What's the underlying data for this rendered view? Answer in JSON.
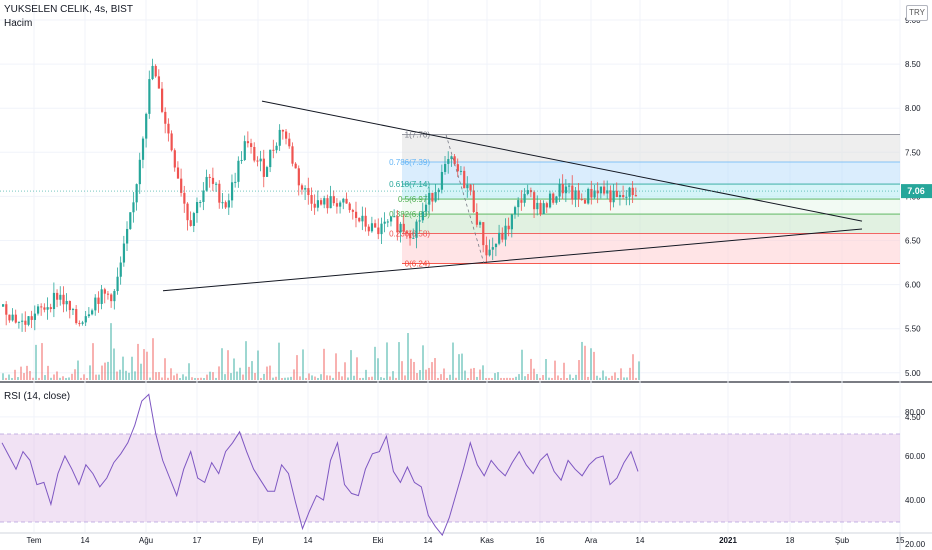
{
  "header": {
    "symbol_line": "YUKSELEN CELIK, 4s, BIST",
    "volume_label": "Hacim",
    "currency": "TRY"
  },
  "rsi_pane": {
    "label": "RSI (14, close)"
  },
  "colors": {
    "up": "#26a69a",
    "down": "#ef5350",
    "rsi_line": "#7e57c2",
    "rsi_band": "#e1bee7",
    "fib_0": "#ef9a9a",
    "fib_236": "#ffcdd2",
    "fib_382": "#c8e6c9",
    "fib_5": "#e8f5e9",
    "fib_618": "#b2ebf2",
    "fib_786": "#bbdefb",
    "fib_1": "#e0e0e0"
  },
  "chart_data": [
    {
      "type": "candlestick",
      "title": "YUKSELEN CELIK, 4s, BIST",
      "x_ticks": [
        "Tem",
        "14",
        "Ağu",
        "17",
        "Eyl",
        "14",
        "Eki",
        "14",
        "Kas",
        "16",
        "Ara",
        "14",
        "2021",
        "18",
        "Şub",
        "15"
      ],
      "y_ticks": [
        "4.50",
        "5.00",
        "5.50",
        "6.00",
        "6.50",
        "7.00",
        "7.50",
        "8.00",
        "8.50",
        "9.00"
      ],
      "ylim": [
        4.5,
        9.0
      ],
      "last_price": "7.06",
      "price_path": [
        {
          "x": "Tem",
          "y": 5.75
        },
        {
          "x": "Tem",
          "y": 5.55
        },
        {
          "x": "Tem",
          "y": 5.7
        },
        {
          "x": "Tem",
          "y": 5.9
        },
        {
          "x": "14",
          "y": 5.55
        },
        {
          "x": "14",
          "y": 5.85
        },
        {
          "x": "14",
          "y": 5.9
        },
        {
          "x": "14",
          "y": 6.9
        },
        {
          "x": "Ağu",
          "y": 8.5
        },
        {
          "x": "Ağu",
          "y": 7.6
        },
        {
          "x": "Ağu",
          "y": 6.7
        },
        {
          "x": "Ağu",
          "y": 7.2
        },
        {
          "x": "17",
          "y": 6.9
        },
        {
          "x": "17",
          "y": 7.6
        },
        {
          "x": "17",
          "y": 7.3
        },
        {
          "x": "Eyl",
          "y": 7.8
        },
        {
          "x": "Eyl",
          "y": 7.1
        },
        {
          "x": "Eyl",
          "y": 6.9
        },
        {
          "x": "14",
          "y": 6.95
        },
        {
          "x": "14",
          "y": 6.75
        },
        {
          "x": "14",
          "y": 6.6
        },
        {
          "x": "Eki",
          "y": 6.7
        },
        {
          "x": "Eki",
          "y": 6.6
        },
        {
          "x": "14",
          "y": 7.0
        },
        {
          "x": "14",
          "y": 7.4
        },
        {
          "x": "14",
          "y": 7.1
        },
        {
          "x": "Kas",
          "y": 6.35
        },
        {
          "x": "Kas",
          "y": 6.6
        },
        {
          "x": "Kas",
          "y": 7.05
        },
        {
          "x": "16",
          "y": 6.85
        },
        {
          "x": "16",
          "y": 7.1
        },
        {
          "x": "16",
          "y": 6.95
        },
        {
          "x": "Ara",
          "y": 7.1
        },
        {
          "x": "Ara",
          "y": 6.95
        },
        {
          "x": "Ara",
          "y": 7.06
        }
      ],
      "fibonacci": [
        {
          "label": "1(7.70)",
          "level": 1,
          "price": 7.7
        },
        {
          "label": "0.786(7.39)",
          "level": 0.786,
          "price": 7.39
        },
        {
          "label": "0.618(7.14)",
          "level": 0.618,
          "price": 7.14
        },
        {
          "label": "0.5(6.97)",
          "level": 0.5,
          "price": 6.97
        },
        {
          "label": "0.382(6.80)",
          "level": 0.382,
          "price": 6.8
        },
        {
          "label": "0.236(6.58)",
          "level": 0.236,
          "price": 6.58
        },
        {
          "label": "0(6.24)",
          "level": 0,
          "price": 6.24
        }
      ],
      "trendlines": [
        {
          "name": "upper",
          "from": {
            "date": "Eyl",
            "price": 8.08
          },
          "to": {
            "date": "Şub",
            "price": 6.72
          }
        },
        {
          "name": "lower",
          "from": {
            "date": "Ağu",
            "price": 5.93
          },
          "to": {
            "date": "Şub",
            "price": 6.63
          }
        }
      ]
    },
    {
      "type": "line",
      "title": "RSI (14, close)",
      "y_ticks": [
        "20.00",
        "40.00",
        "60.00",
        "80.00"
      ],
      "ylim": [
        15,
        95
      ],
      "band": [
        30,
        70
      ],
      "series": [
        {
          "values": [
            66,
            60,
            54,
            62,
            58,
            47,
            48,
            38,
            52,
            60,
            54,
            47,
            56,
            52,
            46,
            50,
            57,
            61,
            66,
            74,
            85,
            88,
            70,
            58,
            50,
            42,
            54,
            62,
            50,
            48,
            57,
            52,
            62,
            66,
            71,
            62,
            54,
            49,
            44,
            44,
            56,
            52,
            39,
            27,
            35,
            42,
            40,
            58,
            66,
            47,
            43,
            42,
            54,
            61,
            62,
            69,
            53,
            48,
            55,
            48,
            46,
            33,
            28,
            24,
            32,
            43,
            54,
            66,
            56,
            51,
            58,
            54,
            51,
            57,
            62,
            56,
            52,
            58,
            61,
            53,
            49,
            58,
            54,
            51,
            56,
            59,
            60,
            47,
            50,
            57,
            62,
            53
          ]
        }
      ]
    }
  ]
}
